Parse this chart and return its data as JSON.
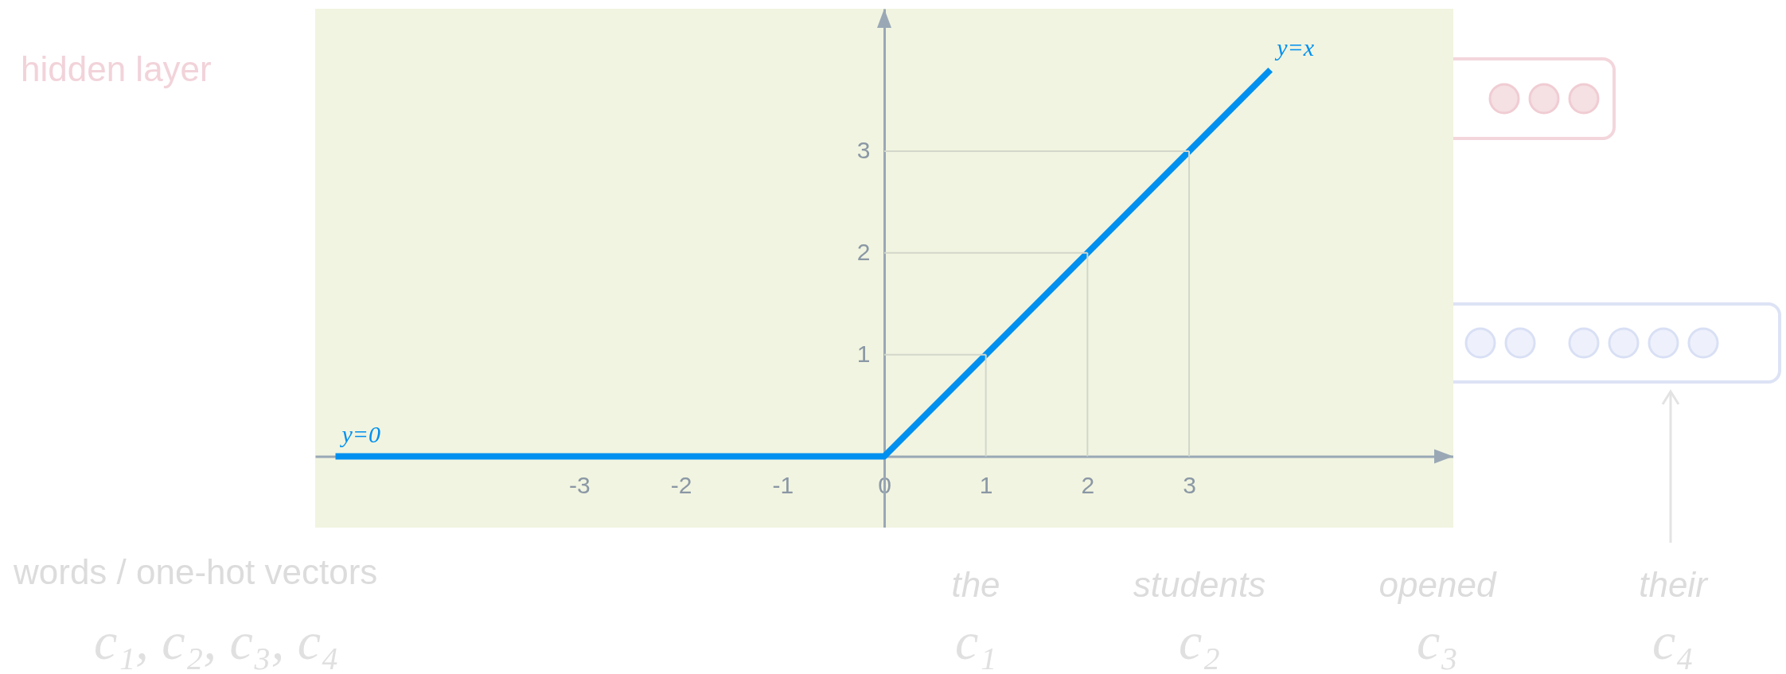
{
  "chart_data": {
    "type": "line",
    "x": [
      -5.4,
      0,
      3.8
    ],
    "series": [
      {
        "color": "#0090f0",
        "values": [
          0,
          0,
          3.8
        ]
      }
    ],
    "xlim": [
      -5.6,
      5.6
    ],
    "ylim": [
      -0.7,
      4.4
    ],
    "xticks": [
      -3,
      -2,
      -1,
      0,
      1,
      2,
      3
    ],
    "yticks": [
      1,
      2,
      3
    ],
    "line_style": "solid",
    "marker": "none",
    "annotations": [
      {
        "text": "y=0",
        "x": -5.4,
        "y": 0
      },
      {
        "text": "y=x",
        "x": 3.8,
        "y": 3.8
      },
      "hidden layer",
      "words / one-hot vectors",
      "c₁, c₂, c₃, c₄",
      "the",
      "students",
      "opened",
      "their",
      "c₁",
      "c₂",
      "c₃",
      "c₄"
    ]
  }
}
